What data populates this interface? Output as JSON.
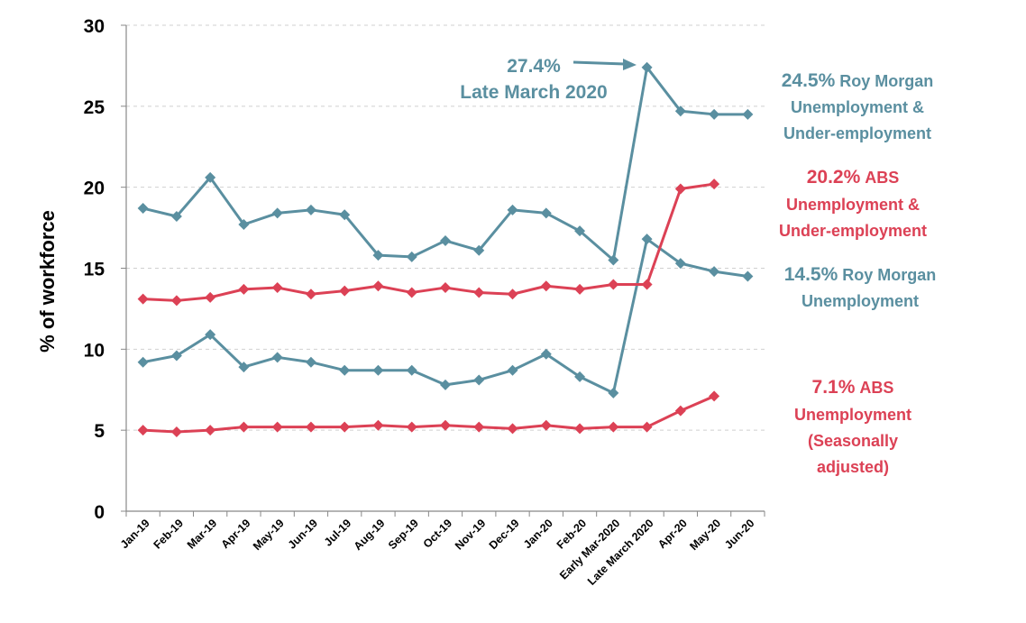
{
  "chart_data": {
    "type": "line",
    "ylabel": "% of workforce",
    "ylim": [
      0,
      30
    ],
    "yticks": [
      "0",
      "5",
      "10",
      "15",
      "20",
      "25",
      "30"
    ],
    "grid": "horizontal dashed",
    "categories": [
      "Jan-19",
      "Feb-19",
      "Mar-19",
      "Apr-19",
      "May-19",
      "Jun-19",
      "Jul-19",
      "Aug-19",
      "Sep-19",
      "Oct-19",
      "Nov-19",
      "Dec-19",
      "Jan-20",
      "Feb-20",
      "Early Mar-2020",
      "Late March 2020",
      "Apr-20",
      "May-20",
      "Jun-20"
    ],
    "series": [
      {
        "values": [
          18.7,
          18.2,
          20.6,
          17.7,
          18.4,
          18.6,
          18.3,
          15.8,
          15.7,
          16.7,
          16.1,
          18.6,
          18.4,
          17.3,
          15.5,
          27.4,
          24.7,
          24.5,
          24.5
        ],
        "color": "#5a8fa0"
      },
      {
        "values": [
          9.2,
          9.6,
          10.9,
          8.9,
          9.5,
          9.2,
          8.7,
          8.7,
          8.7,
          7.8,
          8.1,
          8.7,
          9.7,
          8.3,
          7.3,
          16.8,
          15.3,
          14.8,
          14.5
        ],
        "color": "#5a8fa0"
      },
      {
        "values": [
          13.1,
          13.0,
          13.2,
          13.7,
          13.8,
          13.4,
          13.6,
          13.9,
          13.5,
          13.8,
          13.5,
          13.4,
          13.9,
          13.7,
          14.0,
          14.0,
          19.9,
          20.2,
          null
        ],
        "color": "#dc4155"
      },
      {
        "values": [
          5.0,
          4.9,
          5.0,
          5.2,
          5.2,
          5.2,
          5.2,
          5.3,
          5.2,
          5.3,
          5.2,
          5.1,
          5.3,
          5.1,
          5.2,
          5.2,
          6.2,
          7.1,
          null
        ],
        "color": "#dc4155"
      }
    ],
    "annotations": [
      {
        "value": "27.4%",
        "text": "Late March 2020",
        "color": "#5a8fa0"
      },
      {
        "value": "24.5%",
        "text": "Roy Morgan",
        "line2": "Unemployment &",
        "line3": "Under-employment",
        "color": "#5a8fa0"
      },
      {
        "value": "20.2%",
        "text": "ABS",
        "line2": "Unemployment &",
        "line3": "Under-employment",
        "color": "#dc4155"
      },
      {
        "value": "14.5%",
        "text": "Roy Morgan",
        "line2": "Unemployment",
        "color": "#5a8fa0"
      },
      {
        "value": "7.1%",
        "text": "ABS",
        "line2": "Unemployment",
        "line3": "(Seasonally",
        "line4": "adjusted)",
        "color": "#dc4155"
      }
    ]
  }
}
